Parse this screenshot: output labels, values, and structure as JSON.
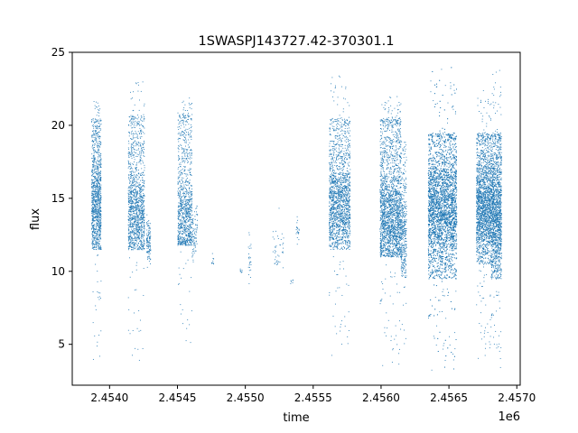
{
  "chart_data": {
    "type": "scatter",
    "title": "1SWASPJ143727.42-370301.1",
    "xlabel": "time",
    "ylabel": "flux",
    "x_offset_label": "1e6",
    "xlim": [
      2453725,
      2457025
    ],
    "ylim": [
      2.2,
      25
    ],
    "x_ticks": [
      2.454,
      2.4545,
      2.455,
      2.4555,
      2.456,
      2.4565,
      2.457
    ],
    "x_tick_labels": [
      "2.4540",
      "2.4545",
      "2.4550",
      "2.4555",
      "2.4560",
      "2.4565",
      "2.4570"
    ],
    "y_ticks": [
      5,
      10,
      15,
      20,
      25
    ],
    "y_tick_labels": [
      "5",
      "10",
      "15",
      "20",
      "25"
    ],
    "grid": false,
    "marker_color": "#1f77b4",
    "series": [
      {
        "segments": [
          {
            "x0": 2453865,
            "x1": 2453935,
            "lo": 11.5,
            "hi": 20.5,
            "center": 14.5,
            "n": 1100,
            "outlier_lo": 3.5,
            "outlier_hi": 21.8
          },
          {
            "x0": 2454135,
            "x1": 2454255,
            "lo": 11.5,
            "hi": 20.7,
            "center": 13.8,
            "n": 1300,
            "outlier_lo": 3.8,
            "outlier_hi": 23.0
          },
          {
            "x0": 2454270,
            "x1": 2454300,
            "lo": 10.8,
            "hi": 13.5,
            "center": 12.0,
            "n": 120,
            "outlier_lo": 10.0,
            "outlier_hi": 14.0
          },
          {
            "x0": 2454500,
            "x1": 2454605,
            "lo": 11.8,
            "hi": 20.8,
            "center": 13.5,
            "n": 1000,
            "outlier_lo": 5.0,
            "outlier_hi": 21.9
          },
          {
            "x0": 2454605,
            "x1": 2454645,
            "lo": 11.0,
            "hi": 14.5,
            "center": 12.5,
            "n": 80,
            "outlier_lo": 10.5,
            "outlier_hi": 15.0
          },
          {
            "x0": 2454750,
            "x1": 2454770,
            "lo": 10.5,
            "hi": 11.2,
            "center": 10.8,
            "n": 10,
            "outlier_lo": 10.3,
            "outlier_hi": 11.3
          },
          {
            "x0": 2454960,
            "x1": 2454975,
            "lo": 9.7,
            "hi": 10.3,
            "center": 10.0,
            "n": 8,
            "outlier_lo": 9.6,
            "outlier_hi": 10.4
          },
          {
            "x0": 2455020,
            "x1": 2455040,
            "lo": 9.0,
            "hi": 12.6,
            "center": 11.0,
            "n": 25,
            "outlier_lo": 8.8,
            "outlier_hi": 12.7
          },
          {
            "x0": 2455200,
            "x1": 2455280,
            "lo": 10.2,
            "hi": 12.8,
            "center": 11.0,
            "n": 40,
            "outlier_lo": 10.0,
            "outlier_hi": 17.2
          },
          {
            "x0": 2455330,
            "x1": 2455350,
            "lo": 9.1,
            "hi": 9.4,
            "center": 9.2,
            "n": 6,
            "outlier_lo": 9.0,
            "outlier_hi": 9.5
          },
          {
            "x0": 2455370,
            "x1": 2455395,
            "lo": 12.0,
            "hi": 13.8,
            "center": 12.8,
            "n": 20,
            "outlier_lo": 11.8,
            "outlier_hi": 14.0
          },
          {
            "x0": 2455615,
            "x1": 2455770,
            "lo": 11.5,
            "hi": 20.5,
            "center": 14.5,
            "n": 1700,
            "outlier_lo": 4.2,
            "outlier_hi": 23.5
          },
          {
            "x0": 2455990,
            "x1": 2456145,
            "lo": 11.0,
            "hi": 20.5,
            "center": 13.5,
            "n": 2100,
            "outlier_lo": 3.5,
            "outlier_hi": 22.0
          },
          {
            "x0": 2456145,
            "x1": 2456185,
            "lo": 9.5,
            "hi": 18.5,
            "center": 12.5,
            "n": 350,
            "outlier_lo": 4.5,
            "outlier_hi": 19.0
          },
          {
            "x0": 2456345,
            "x1": 2456555,
            "lo": 9.5,
            "hi": 19.5,
            "center": 14.5,
            "n": 4200,
            "outlier_lo": 3.2,
            "outlier_hi": 24.0
          },
          {
            "x0": 2456700,
            "x1": 2456810,
            "lo": 10.5,
            "hi": 19.5,
            "center": 14.5,
            "n": 1900,
            "outlier_lo": 4.0,
            "outlier_hi": 22.5
          },
          {
            "x0": 2456810,
            "x1": 2456885,
            "lo": 9.5,
            "hi": 19.5,
            "center": 14.0,
            "n": 1500,
            "outlier_lo": 3.3,
            "outlier_hi": 23.8
          }
        ]
      }
    ]
  }
}
